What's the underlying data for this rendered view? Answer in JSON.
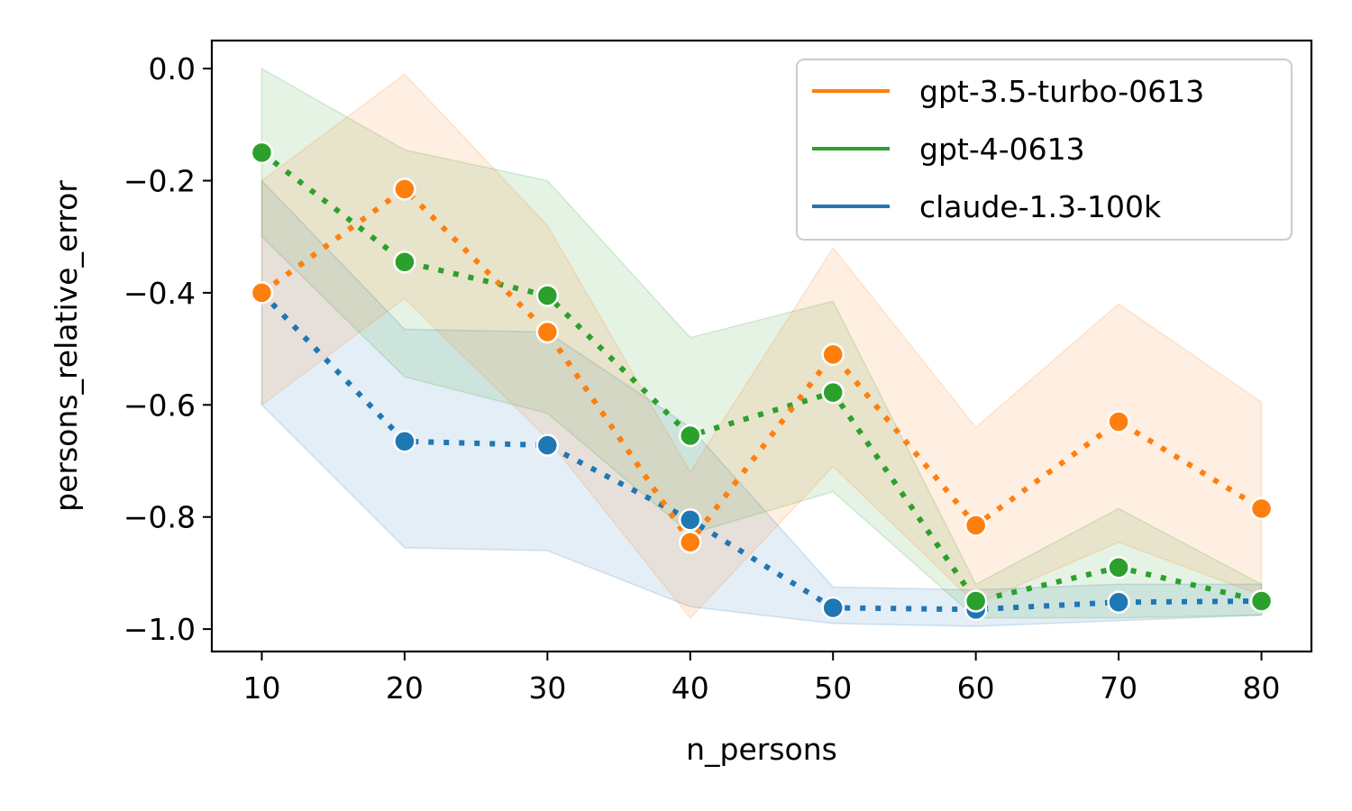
{
  "chart_data": {
    "type": "line",
    "xlabel": "n_persons",
    "ylabel": "persons_relative_error",
    "xlim": [
      6.5,
      83.5
    ],
    "ylim": [
      -1.04,
      0.05
    ],
    "xticks": [
      10,
      20,
      30,
      40,
      50,
      60,
      70,
      80
    ],
    "yticks": [
      0.0,
      -0.2,
      -0.4,
      -0.6,
      -0.8,
      -1.0
    ],
    "ytick_labels": [
      "0.0",
      "−0.2",
      "−0.4",
      "−0.6",
      "−0.8",
      "−1.0"
    ],
    "grid": false,
    "legend_position": "top-right",
    "x": [
      10,
      20,
      30,
      40,
      50,
      60,
      70,
      80
    ],
    "series": [
      {
        "name": "gpt-3.5-turbo-0613",
        "color": "#ff7f0e",
        "values": [
          -0.4,
          -0.215,
          -0.47,
          -0.845,
          -0.51,
          -0.815,
          -0.63,
          -0.785
        ],
        "ci_upper": [
          -0.2,
          -0.01,
          -0.28,
          -0.72,
          -0.32,
          -0.64,
          -0.42,
          -0.595
        ],
        "ci_lower": [
          -0.6,
          -0.41,
          -0.66,
          -0.98,
          -0.71,
          -0.955,
          -0.845,
          -0.94
        ]
      },
      {
        "name": "gpt-4-0613",
        "color": "#2ca02c",
        "values": [
          -0.15,
          -0.345,
          -0.405,
          -0.655,
          -0.578,
          -0.95,
          -0.89,
          -0.95
        ],
        "ci_upper": [
          0.0,
          -0.145,
          -0.2,
          -0.48,
          -0.415,
          -0.92,
          -0.785,
          -0.92
        ],
        "ci_lower": [
          -0.3,
          -0.55,
          -0.615,
          -0.83,
          -0.755,
          -0.98,
          -0.98,
          -0.975
        ]
      },
      {
        "name": "claude-1.3-100k",
        "color": "#1f77b4",
        "values": [
          -0.4,
          -0.665,
          -0.672,
          -0.805,
          -0.962,
          -0.965,
          -0.952,
          -0.95
        ],
        "ci_upper": [
          -0.2,
          -0.465,
          -0.47,
          -0.64,
          -0.925,
          -0.93,
          -0.92,
          -0.92
        ],
        "ci_lower": [
          -0.6,
          -0.855,
          -0.86,
          -0.96,
          -0.99,
          -0.995,
          -0.985,
          -0.975
        ]
      }
    ],
    "legend_order": [
      "gpt-3.5-turbo-0613",
      "gpt-4-0613",
      "claude-1.3-100k"
    ]
  }
}
